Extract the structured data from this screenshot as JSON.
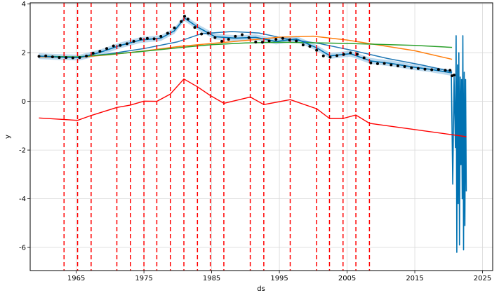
{
  "chart_data": {
    "type": "line",
    "title": "",
    "xlabel": "ds",
    "ylabel": "y",
    "xlim": [
      1958.2,
      2026.5
    ],
    "ylim": [
      -6.95,
      4.05
    ],
    "x_ticks": [
      1965,
      1975,
      1985,
      1995,
      2005,
      2015,
      2025
    ],
    "y_ticks": [
      4,
      2,
      0,
      -2,
      -4,
      -6
    ],
    "grid": true,
    "changepoints": [
      1963.2,
      1965.2,
      1967.2,
      1971.0,
      1973.0,
      1975.0,
      1976.9,
      1978.9,
      1980.9,
      1982.9,
      1984.8,
      1986.8,
      1990.7,
      1992.7,
      1996.6,
      2000.5,
      2002.4,
      2004.4,
      2006.3,
      2008.3
    ],
    "colors": {
      "observed": "#000000",
      "forecast": "#0072B2",
      "uncertainty": "#9fcbe8",
      "trend": "#ff0000",
      "changepoint": "#ff0000",
      "series_blue": "#1f77b4",
      "series_orange": "#ff7f0e",
      "series_green": "#2ca02c"
    },
    "series": [
      {
        "role": "observed",
        "x": [
          1959.5,
          1960.5,
          1961.5,
          1962.5,
          1963.5,
          1964.5,
          1965.5,
          1966.5,
          1967.5,
          1968.5,
          1969.5,
          1970.5,
          1971.5,
          1972.5,
          1973.5,
          1974.5,
          1975.5,
          1976.5,
          1977.5,
          1978.5,
          1979.5,
          1980.5,
          1981.0,
          1981.5,
          1982.5,
          1983.5,
          1984.5,
          1985.5,
          1986.5,
          1987.5,
          1988.5,
          1989.5,
          1990.5,
          1991.5,
          1992.5,
          1993.5,
          1994.5,
          1995.5,
          1996.5,
          1997.5,
          1998.5,
          1999.5,
          2000.5,
          2001.5,
          2002.5,
          2003.5,
          2004.5,
          2005.5,
          2006.5,
          2007.5,
          2008.5,
          2009.5,
          2010.5,
          2011.5,
          2012.5,
          2013.5,
          2014.5,
          2015.5,
          2016.5,
          2017.5,
          2018.5,
          2019.5,
          2020.2,
          2020.5,
          2020.8
        ],
        "y": [
          1.85,
          1.87,
          1.83,
          1.8,
          1.8,
          1.79,
          1.8,
          1.86,
          1.98,
          2.06,
          2.17,
          2.28,
          2.3,
          2.37,
          2.47,
          2.57,
          2.59,
          2.57,
          2.67,
          2.8,
          3.02,
          3.28,
          3.5,
          3.38,
          3.04,
          2.77,
          2.8,
          2.62,
          2.47,
          2.55,
          2.67,
          2.74,
          2.62,
          2.44,
          2.43,
          2.48,
          2.55,
          2.59,
          2.52,
          2.48,
          2.32,
          2.26,
          2.1,
          1.87,
          1.82,
          1.88,
          1.93,
          1.99,
          1.94,
          1.79,
          1.58,
          1.55,
          1.56,
          1.5,
          1.46,
          1.43,
          1.38,
          1.35,
          1.32,
          1.3,
          1.31,
          1.28,
          1.28,
          1.05,
          1.08
        ]
      },
      {
        "role": "forecast",
        "x": [
          1959.5,
          1962.5,
          1965.5,
          1968.5,
          1971.5,
          1974.5,
          1977.5,
          1979.5,
          1981.0,
          1983.0,
          1985.5,
          1988.5,
          1991.5,
          1994.5,
          1997.5,
          2000.5,
          2002.5,
          2005.5,
          2008.5,
          2011.5,
          2014.5,
          2017.5,
          2020.5
        ],
        "y": [
          1.86,
          1.82,
          1.8,
          2.01,
          2.3,
          2.52,
          2.6,
          2.9,
          3.42,
          3.04,
          2.66,
          2.6,
          2.63,
          2.46,
          2.57,
          2.2,
          1.87,
          1.96,
          1.66,
          1.56,
          1.42,
          1.31,
          1.17
        ]
      },
      {
        "role": "forecast-tail",
        "x": [
          2020.4,
          2020.6,
          2020.8,
          2021.0,
          2021.1,
          2021.2,
          2021.3,
          2021.4,
          2021.5,
          2021.6,
          2021.7,
          2021.8,
          2021.9,
          2022.0,
          2022.1,
          2022.2,
          2022.3,
          2022.4,
          2022.5,
          2022.6
        ],
        "y": [
          1.1,
          -3.4,
          1.0,
          -1.9,
          2.7,
          -6.2,
          1.5,
          -4.2,
          2.0,
          -5.9,
          1.0,
          -2.6,
          0.9,
          -4.0,
          2.7,
          -6.1,
          1.2,
          -5.1,
          0.9,
          -3.7
        ]
      },
      {
        "role": "series_blue",
        "x": [
          1959.5,
          1965.0,
          1970.0,
          1975.0,
          1980.0,
          1983.5,
          1988.0,
          1992.0,
          1996.0,
          2001.0,
          2006.0,
          2011.0,
          2016.0,
          2020.5
        ],
        "y": [
          1.83,
          1.8,
          1.96,
          2.17,
          2.45,
          2.78,
          2.87,
          2.81,
          2.57,
          2.37,
          2.08,
          1.76,
          1.5,
          1.22
        ]
      },
      {
        "role": "series_orange",
        "x": [
          1959.5,
          1965.0,
          1970.0,
          1975.0,
          1980.0,
          1985.0,
          1990.0,
          1995.0,
          2000.0,
          2005.0,
          2010.0,
          2015.0,
          2020.5
        ],
        "y": [
          1.83,
          1.8,
          1.92,
          2.07,
          2.25,
          2.38,
          2.5,
          2.64,
          2.68,
          2.52,
          2.3,
          2.08,
          1.73
        ]
      },
      {
        "role": "series_green",
        "x": [
          1959.5,
          1965.0,
          1970.0,
          1975.0,
          1980.0,
          1985.0,
          1990.0,
          1995.0,
          2000.0,
          2005.0,
          2010.0,
          2015.0,
          2020.5
        ],
        "y": [
          1.86,
          1.83,
          1.93,
          2.06,
          2.2,
          2.33,
          2.4,
          2.43,
          2.41,
          2.38,
          2.34,
          2.3,
          2.22
        ]
      },
      {
        "role": "trend",
        "x": [
          1959.5,
          1965.2,
          1967.2,
          1971.0,
          1973.0,
          1975.0,
          1976.9,
          1978.9,
          1980.9,
          1982.9,
          1984.8,
          1986.8,
          1990.7,
          1992.7,
          1996.6,
          2000.5,
          2002.4,
          2004.4,
          2006.3,
          2008.3,
          2022.6
        ],
        "y": [
          -0.68,
          -0.78,
          -0.58,
          -0.25,
          -0.15,
          0.01,
          0.0,
          0.3,
          0.92,
          0.6,
          0.24,
          -0.08,
          0.18,
          -0.13,
          0.07,
          -0.3,
          -0.7,
          -0.7,
          -0.56,
          -0.9,
          -1.45
        ]
      }
    ]
  }
}
